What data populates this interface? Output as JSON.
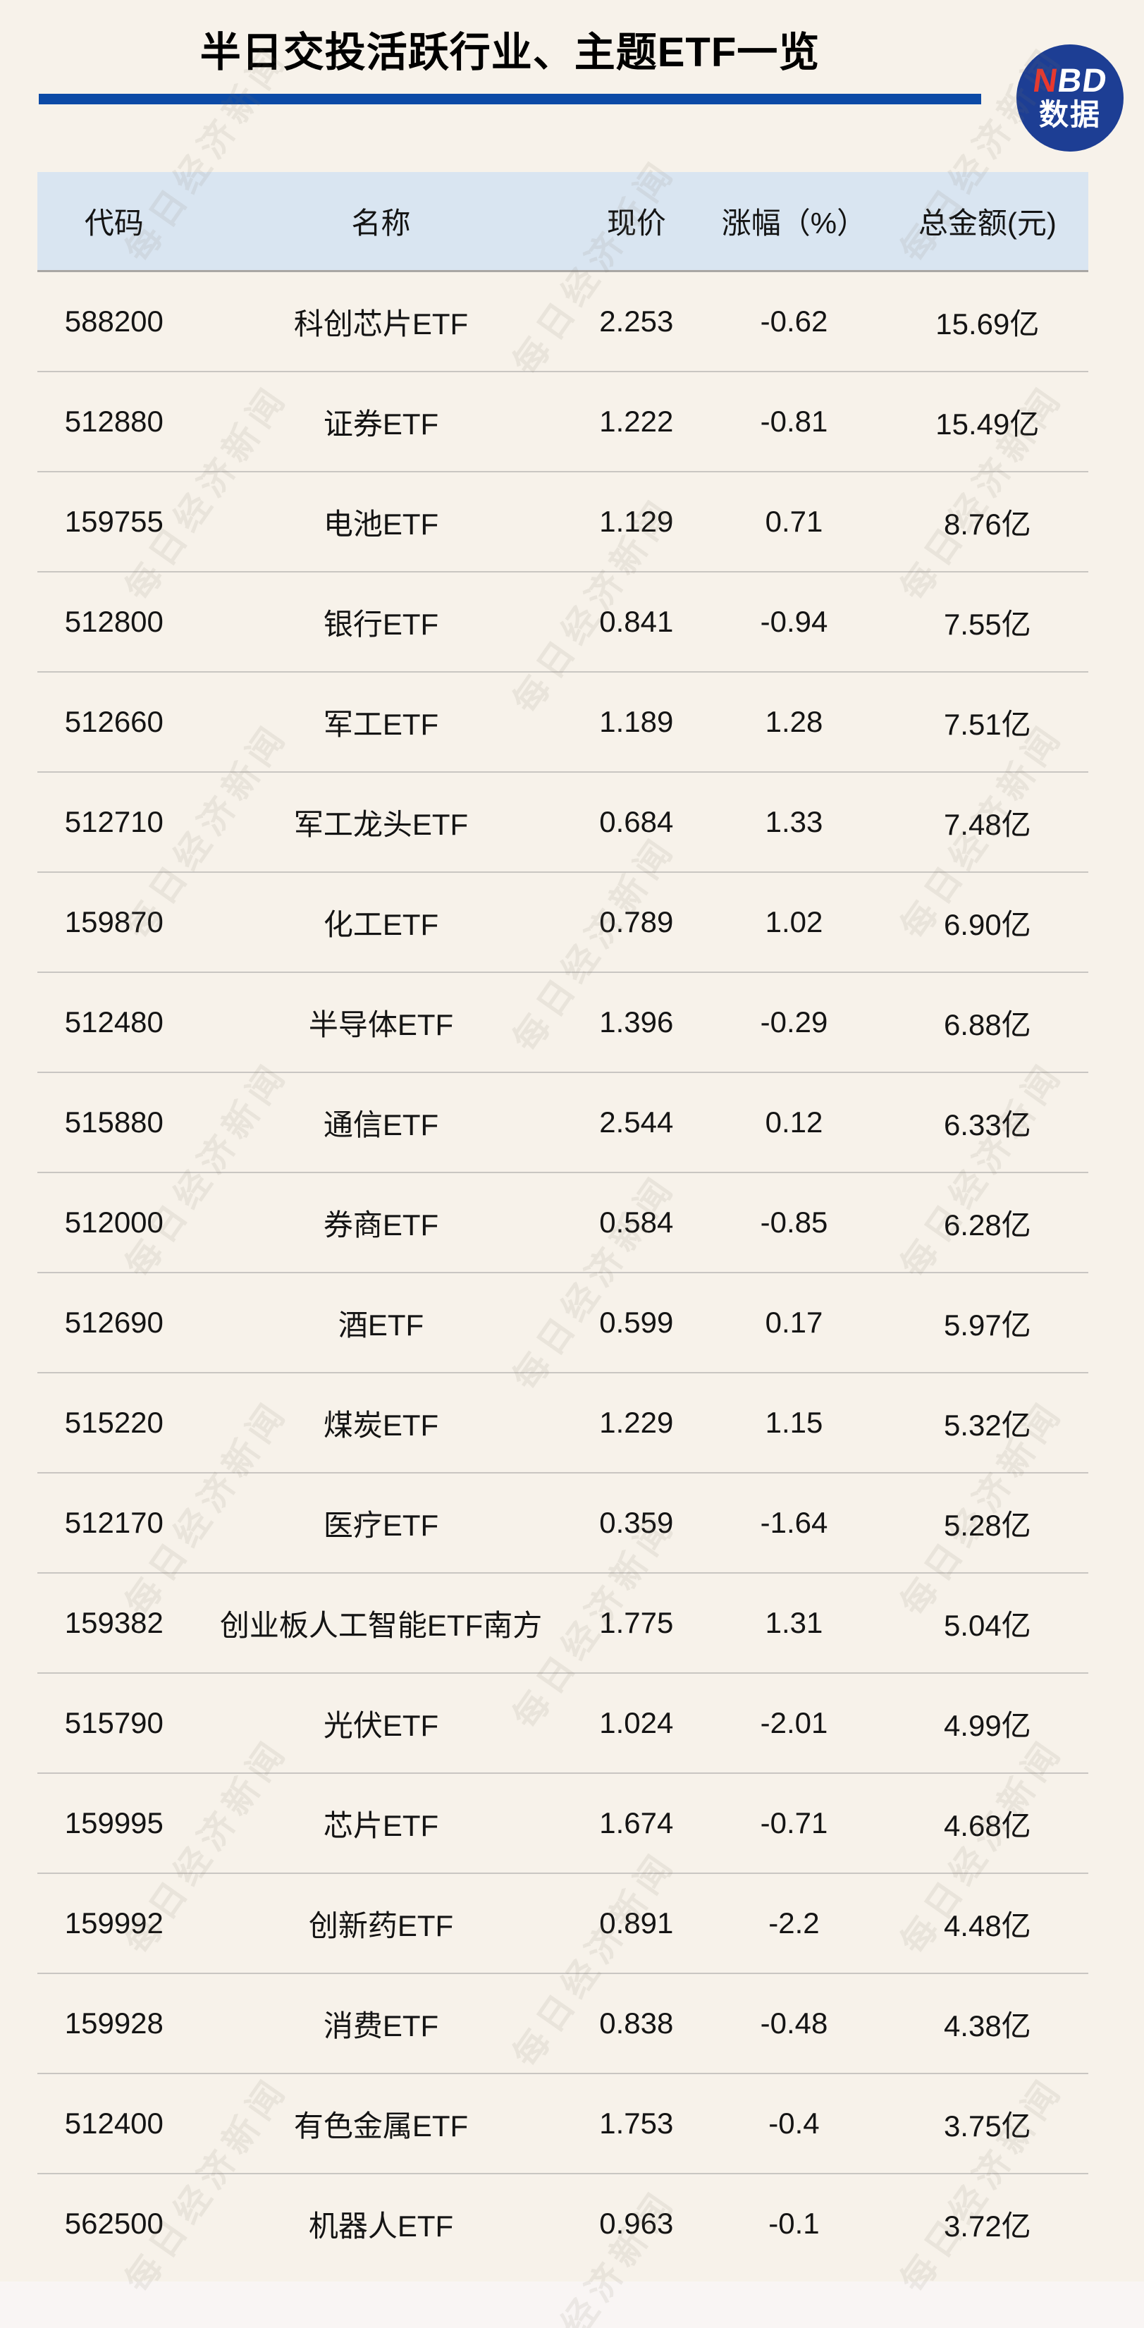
{
  "logo": {
    "line1_red": "N",
    "line1_rest": "BD",
    "line2": "数据"
  },
  "watermark": {
    "text": "每日经济新闻"
  },
  "colors": {
    "bg": "#f7f2ea",
    "footer_bg": "#f9f5f4",
    "header_bg": "#d9e5f1",
    "title_line": "#0c4aa6",
    "logo_circle": "#1d3e94",
    "logo_n": "#e8382e",
    "ink": "#141414",
    "row_line": "#c9c6c2"
  },
  "chart_data": {
    "type": "table",
    "title": "半日交投活跃行业、主题ETF一览",
    "columns": [
      "代码",
      "名称",
      "现价",
      "涨幅（%）",
      "总金额(元)"
    ],
    "rows": [
      {
        "code": "588200",
        "name": "科创芯片ETF",
        "price": "2.253",
        "change": "-0.62",
        "amount": "15.69亿"
      },
      {
        "code": "512880",
        "name": "证券ETF",
        "price": "1.222",
        "change": "-0.81",
        "amount": "15.49亿"
      },
      {
        "code": "159755",
        "name": "电池ETF",
        "price": "1.129",
        "change": "0.71",
        "amount": "8.76亿"
      },
      {
        "code": "512800",
        "name": "银行ETF",
        "price": "0.841",
        "change": "-0.94",
        "amount": "7.55亿"
      },
      {
        "code": "512660",
        "name": "军工ETF",
        "price": "1.189",
        "change": "1.28",
        "amount": "7.51亿"
      },
      {
        "code": "512710",
        "name": "军工龙头ETF",
        "price": "0.684",
        "change": "1.33",
        "amount": "7.48亿"
      },
      {
        "code": "159870",
        "name": "化工ETF",
        "price": "0.789",
        "change": "1.02",
        "amount": "6.90亿"
      },
      {
        "code": "512480",
        "name": "半导体ETF",
        "price": "1.396",
        "change": "-0.29",
        "amount": "6.88亿"
      },
      {
        "code": "515880",
        "name": "通信ETF",
        "price": "2.544",
        "change": "0.12",
        "amount": "6.33亿"
      },
      {
        "code": "512000",
        "name": "券商ETF",
        "price": "0.584",
        "change": "-0.85",
        "amount": "6.28亿"
      },
      {
        "code": "512690",
        "name": "酒ETF",
        "price": "0.599",
        "change": "0.17",
        "amount": "5.97亿"
      },
      {
        "code": "515220",
        "name": "煤炭ETF",
        "price": "1.229",
        "change": "1.15",
        "amount": "5.32亿"
      },
      {
        "code": "512170",
        "name": "医疗ETF",
        "price": "0.359",
        "change": "-1.64",
        "amount": "5.28亿"
      },
      {
        "code": "159382",
        "name": "创业板人工智能ETF南方",
        "price": "1.775",
        "change": "1.31",
        "amount": "5.04亿"
      },
      {
        "code": "515790",
        "name": "光伏ETF",
        "price": "1.024",
        "change": "-2.01",
        "amount": "4.99亿"
      },
      {
        "code": "159995",
        "name": "芯片ETF",
        "price": "1.674",
        "change": "-0.71",
        "amount": "4.68亿"
      },
      {
        "code": "159992",
        "name": "创新药ETF",
        "price": "0.891",
        "change": "-2.2",
        "amount": "4.48亿"
      },
      {
        "code": "159928",
        "name": "消费ETF",
        "price": "0.838",
        "change": "-0.48",
        "amount": "4.38亿"
      },
      {
        "code": "512400",
        "name": "有色金属ETF",
        "price": "1.753",
        "change": "-0.4",
        "amount": "3.75亿"
      },
      {
        "code": "562500",
        "name": "机器人ETF",
        "price": "0.963",
        "change": "-0.1",
        "amount": "3.72亿"
      }
    ]
  }
}
